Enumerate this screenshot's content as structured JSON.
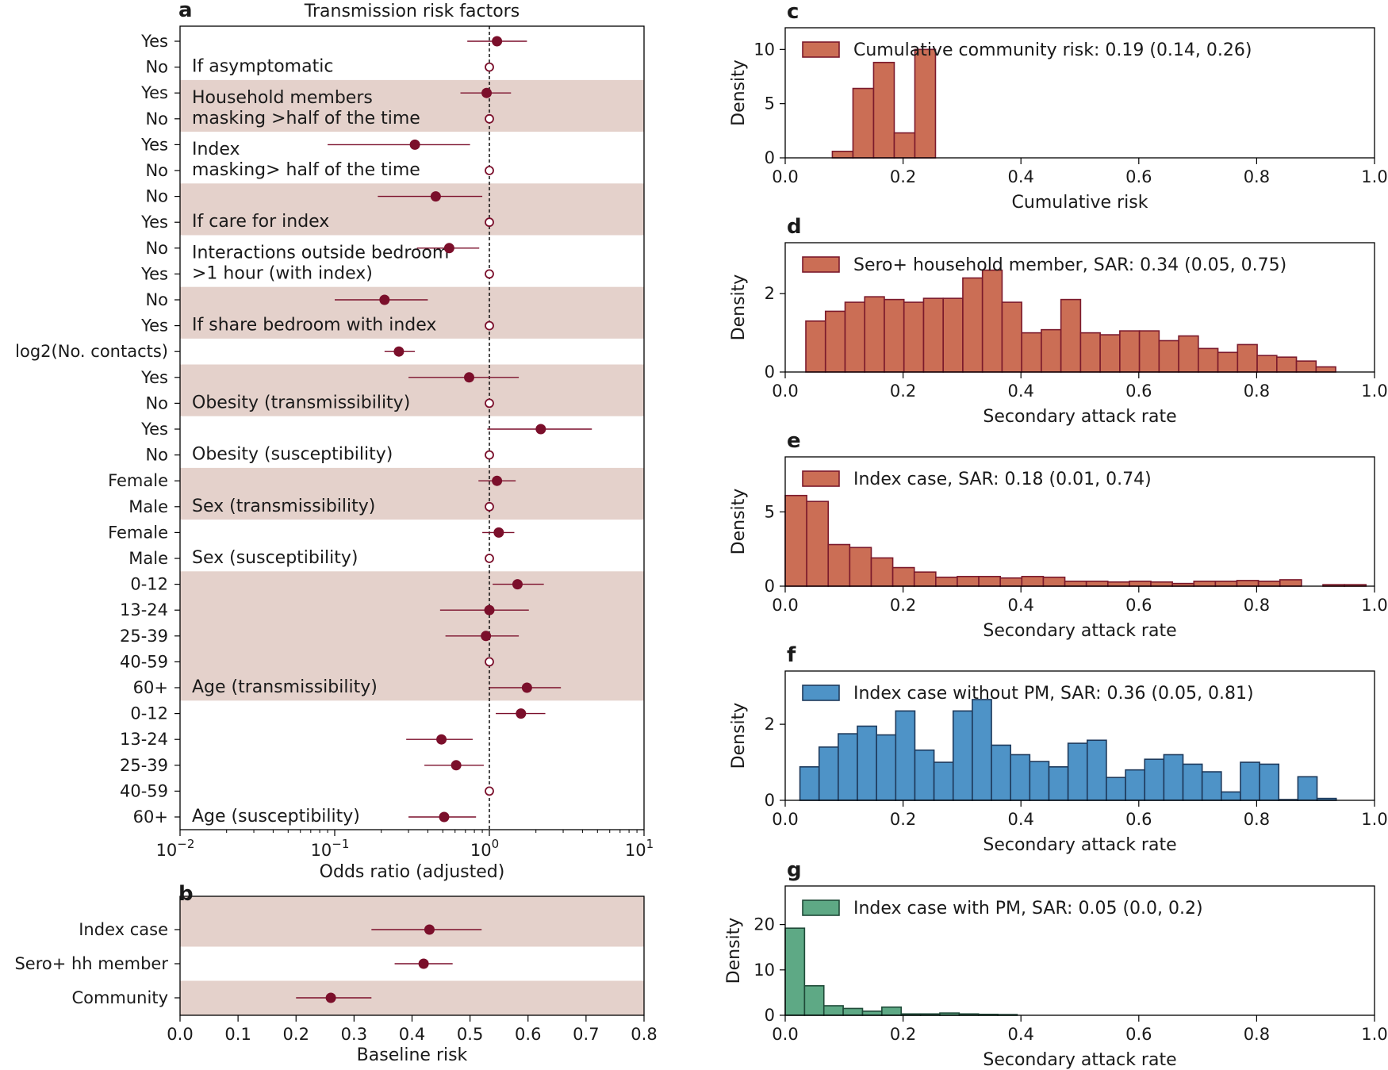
{
  "colors": {
    "point": "#7b0f2b",
    "band": "#e4d1cb",
    "hist_red_fill": "#cb6e55",
    "hist_red_edge": "#7b1a2c",
    "hist_blue_fill": "#4e93c7",
    "hist_blue_edge": "#1e3a5c",
    "hist_green_fill": "#5ea985",
    "hist_green_edge": "#1f4a38"
  },
  "chart_data": [
    {
      "id": "a",
      "type": "forest",
      "panel_letter": "a",
      "title": "Transmission risk factors",
      "xscale": "log",
      "xlim": [
        0.01,
        10
      ],
      "xlabel": "Odds ratio (adjusted)",
      "xticks": [
        {
          "value": 0.01,
          "base": "10",
          "exp": "−2"
        },
        {
          "value": 0.1,
          "base": "10",
          "exp": "−1"
        },
        {
          "value": 1,
          "base": "10",
          "exp": "0"
        },
        {
          "value": 10,
          "base": "10",
          "exp": "1"
        }
      ],
      "reference_line": 1,
      "rows": [
        {
          "label": "Yes",
          "or": 1.12,
          "lo": 0.72,
          "hi": 1.75,
          "ref": false
        },
        {
          "label": "No",
          "or": 1.0,
          "ref": true
        },
        {
          "label": "Yes",
          "or": 0.96,
          "lo": 0.65,
          "hi": 1.38,
          "ref": false
        },
        {
          "label": "No",
          "or": 1.0,
          "ref": true
        },
        {
          "label": "Yes",
          "or": 0.33,
          "lo": 0.09,
          "hi": 0.75,
          "ref": false
        },
        {
          "label": "No",
          "or": 1.0,
          "ref": true
        },
        {
          "label": "No",
          "or": 0.45,
          "lo": 0.19,
          "hi": 0.9,
          "ref": false
        },
        {
          "label": "Yes",
          "or": 1.0,
          "ref": true
        },
        {
          "label": "No",
          "or": 0.55,
          "lo": 0.34,
          "hi": 0.86,
          "ref": false
        },
        {
          "label": "Yes",
          "or": 1.0,
          "ref": true
        },
        {
          "label": "No",
          "or": 0.21,
          "lo": 0.1,
          "hi": 0.4,
          "ref": false
        },
        {
          "label": "Yes",
          "or": 1.0,
          "ref": true
        },
        {
          "label": "log2(No. contacts)",
          "or": 0.26,
          "lo": 0.21,
          "hi": 0.33,
          "ref": false
        },
        {
          "label": "Yes",
          "or": 0.74,
          "lo": 0.3,
          "hi": 1.55,
          "ref": false
        },
        {
          "label": "No",
          "or": 1.0,
          "ref": true
        },
        {
          "label": "Yes",
          "or": 2.15,
          "lo": 0.97,
          "hi": 4.6,
          "ref": false
        },
        {
          "label": "No",
          "or": 1.0,
          "ref": true
        },
        {
          "label": "Female",
          "or": 1.12,
          "lo": 0.85,
          "hi": 1.48,
          "ref": false
        },
        {
          "label": "Male",
          "or": 1.0,
          "ref": true
        },
        {
          "label": "Female",
          "or": 1.15,
          "lo": 0.9,
          "hi": 1.45,
          "ref": false
        },
        {
          "label": "Male",
          "or": 1.0,
          "ref": true
        },
        {
          "label": "0-12",
          "or": 1.52,
          "lo": 1.05,
          "hi": 2.25,
          "ref": false
        },
        {
          "label": "13-24",
          "or": 1.0,
          "lo": 0.48,
          "hi": 1.8,
          "ref": false
        },
        {
          "label": "25-39",
          "or": 0.95,
          "lo": 0.52,
          "hi": 1.55,
          "ref": false
        },
        {
          "label": "40-59",
          "or": 1.0,
          "ref": true
        },
        {
          "label": "60+",
          "or": 1.75,
          "lo": 1.0,
          "hi": 2.9,
          "ref": false
        },
        {
          "label": "0-12",
          "or": 1.6,
          "lo": 1.1,
          "hi": 2.3,
          "ref": false
        },
        {
          "label": "13-24",
          "or": 0.49,
          "lo": 0.29,
          "hi": 0.78,
          "ref": false
        },
        {
          "label": "25-39",
          "or": 0.61,
          "lo": 0.38,
          "hi": 0.92,
          "ref": false
        },
        {
          "label": "40-59",
          "or": 1.0,
          "ref": true
        },
        {
          "label": "60+",
          "or": 0.51,
          "lo": 0.3,
          "hi": 0.82,
          "ref": false
        }
      ],
      "groups": [
        {
          "label": "If asymptomatic",
          "rows": [
            0,
            1
          ],
          "shaded": false
        },
        {
          "label": "Household members\nmasking >half of the time",
          "rows": [
            2,
            3
          ],
          "shaded": true
        },
        {
          "label": "Index\nmasking> half of the time",
          "rows": [
            4,
            5
          ],
          "shaded": false
        },
        {
          "label": "If care for index",
          "rows": [
            6,
            7
          ],
          "shaded": true
        },
        {
          "label": "Interactions outside bedroom\n>1 hour (with index)",
          "rows": [
            8,
            9
          ],
          "shaded": false
        },
        {
          "label": "If share bedroom with index",
          "rows": [
            10,
            11
          ],
          "shaded": true
        },
        {
          "label": "",
          "rows": [
            12,
            12
          ],
          "shaded": false
        },
        {
          "label": "Obesity (transmissibility)",
          "rows": [
            13,
            14
          ],
          "shaded": true
        },
        {
          "label": "Obesity (susceptibility)",
          "rows": [
            15,
            16
          ],
          "shaded": false
        },
        {
          "label": "Sex (transmissibility)",
          "rows": [
            17,
            18
          ],
          "shaded": true
        },
        {
          "label": "Sex (susceptibility)",
          "rows": [
            19,
            20
          ],
          "shaded": false
        },
        {
          "label": "Age (transmissibility)",
          "rows": [
            21,
            25
          ],
          "shaded": true
        },
        {
          "label": "Age (susceptibility)",
          "rows": [
            26,
            30
          ],
          "shaded": false
        }
      ]
    },
    {
      "id": "b",
      "type": "forest",
      "panel_letter": "b",
      "xscale": "linear",
      "xlim": [
        0,
        0.8
      ],
      "xlabel": "Baseline risk",
      "xticks": [
        {
          "value": 0.0,
          "label": "0.0"
        },
        {
          "value": 0.1,
          "label": "0.1"
        },
        {
          "value": 0.2,
          "label": "0.2"
        },
        {
          "value": 0.3,
          "label": "0.3"
        },
        {
          "value": 0.4,
          "label": "0.4"
        },
        {
          "value": 0.5,
          "label": "0.5"
        },
        {
          "value": 0.6,
          "label": "0.6"
        },
        {
          "value": 0.7,
          "label": "0.7"
        },
        {
          "value": 0.8,
          "label": "0.8"
        }
      ],
      "rows": [
        {
          "label": "Index case",
          "value": 0.43,
          "lo": 0.33,
          "hi": 0.52,
          "shaded": true
        },
        {
          "label": "Sero+ hh member",
          "value": 0.42,
          "lo": 0.37,
          "hi": 0.47,
          "shaded": false
        },
        {
          "label": "Community",
          "value": 0.26,
          "lo": 0.2,
          "hi": 0.33,
          "shaded": true
        }
      ]
    },
    {
      "id": "c",
      "type": "histogram",
      "panel_letter": "c",
      "color": "red",
      "legend": "Cumulative community risk: 0.19 (0.14, 0.26)",
      "xlabel": "Cumulative risk",
      "ylabel": "Density",
      "xlim": [
        0,
        1
      ],
      "ylim": [
        0,
        12
      ],
      "yticks": [
        0,
        5,
        10
      ],
      "xticks": [
        "0.0",
        "0.2",
        "0.4",
        "0.6",
        "0.8",
        "1.0"
      ],
      "bin_start": 0.08,
      "bin_width": 0.035,
      "values": [
        0.6,
        6.4,
        8.8,
        2.3,
        10.0
      ]
    },
    {
      "id": "d",
      "type": "histogram",
      "panel_letter": "d",
      "color": "red",
      "legend": "Sero+ household member, SAR: 0.34 (0.05, 0.75)",
      "xlabel": "Secondary attack rate",
      "ylabel": "Density",
      "xlim": [
        0,
        1
      ],
      "ylim": [
        0,
        3.3
      ],
      "yticks": [
        0,
        2
      ],
      "xticks": [
        "0.0",
        "0.2",
        "0.4",
        "0.6",
        "0.8",
        "1.0"
      ],
      "bin_start": 0.035,
      "bin_width": 0.0333,
      "values": [
        1.3,
        1.55,
        1.78,
        1.92,
        1.85,
        1.78,
        1.88,
        1.88,
        2.4,
        2.6,
        1.78,
        1.0,
        1.08,
        1.85,
        1.0,
        0.95,
        1.05,
        1.05,
        0.8,
        0.92,
        0.6,
        0.5,
        0.7,
        0.42,
        0.38,
        0.28,
        0.13
      ]
    },
    {
      "id": "e",
      "type": "histogram",
      "panel_letter": "e",
      "color": "red",
      "legend": "Index case, SAR: 0.18 (0.01, 0.74)",
      "xlabel": "Secondary attack rate",
      "ylabel": "Density",
      "xlim": [
        0,
        1
      ],
      "ylim": [
        0,
        8.7
      ],
      "yticks": [
        0,
        5
      ],
      "xticks": [
        "0.0",
        "0.2",
        "0.4",
        "0.6",
        "0.8",
        "1.0"
      ],
      "bin_start": 0.0,
      "bin_width": 0.0365,
      "values": [
        6.1,
        5.7,
        2.8,
        2.6,
        1.9,
        1.25,
        0.95,
        0.6,
        0.65,
        0.65,
        0.55,
        0.65,
        0.6,
        0.33,
        0.33,
        0.28,
        0.33,
        0.28,
        0.18,
        0.33,
        0.33,
        0.38,
        0.33,
        0.43,
        0.0,
        0.1,
        0.1
      ]
    },
    {
      "id": "f",
      "type": "histogram",
      "panel_letter": "f",
      "color": "blue",
      "legend": "Index case without PM, SAR: 0.36 (0.05, 0.81)",
      "xlabel": "Secondary attack rate",
      "ylabel": "Density",
      "xlim": [
        0,
        1
      ],
      "ylim": [
        0,
        3.4
      ],
      "yticks": [
        0,
        2
      ],
      "xticks": [
        "0.0",
        "0.2",
        "0.4",
        "0.6",
        "0.8",
        "1.0"
      ],
      "bin_start": 0.025,
      "bin_width": 0.0325,
      "values": [
        0.88,
        1.4,
        1.75,
        1.95,
        1.72,
        2.35,
        1.32,
        1.0,
        2.35,
        2.65,
        1.45,
        1.2,
        1.02,
        0.88,
        1.5,
        1.58,
        0.6,
        0.8,
        1.08,
        1.2,
        0.95,
        0.75,
        0.22,
        1.0,
        0.95,
        0.02,
        0.62,
        0.05
      ]
    },
    {
      "id": "g",
      "type": "histogram",
      "panel_letter": "g",
      "color": "green",
      "legend": "Index case with PM, SAR: 0.05 (0.0, 0.2)",
      "xlabel": "Secondary attack rate",
      "ylabel": "Density",
      "xlim": [
        0,
        1
      ],
      "ylim": [
        0,
        28.5
      ],
      "yticks": [
        0,
        10,
        20
      ],
      "xticks": [
        "0.0",
        "0.2",
        "0.4",
        "0.6",
        "0.8",
        "1.0"
      ],
      "bin_start": 0.0,
      "bin_width": 0.0328,
      "values": [
        19.2,
        6.5,
        2.1,
        1.5,
        0.9,
        1.8,
        0.3,
        0.3,
        0.5,
        0.3,
        0.2,
        0.15
      ]
    }
  ]
}
